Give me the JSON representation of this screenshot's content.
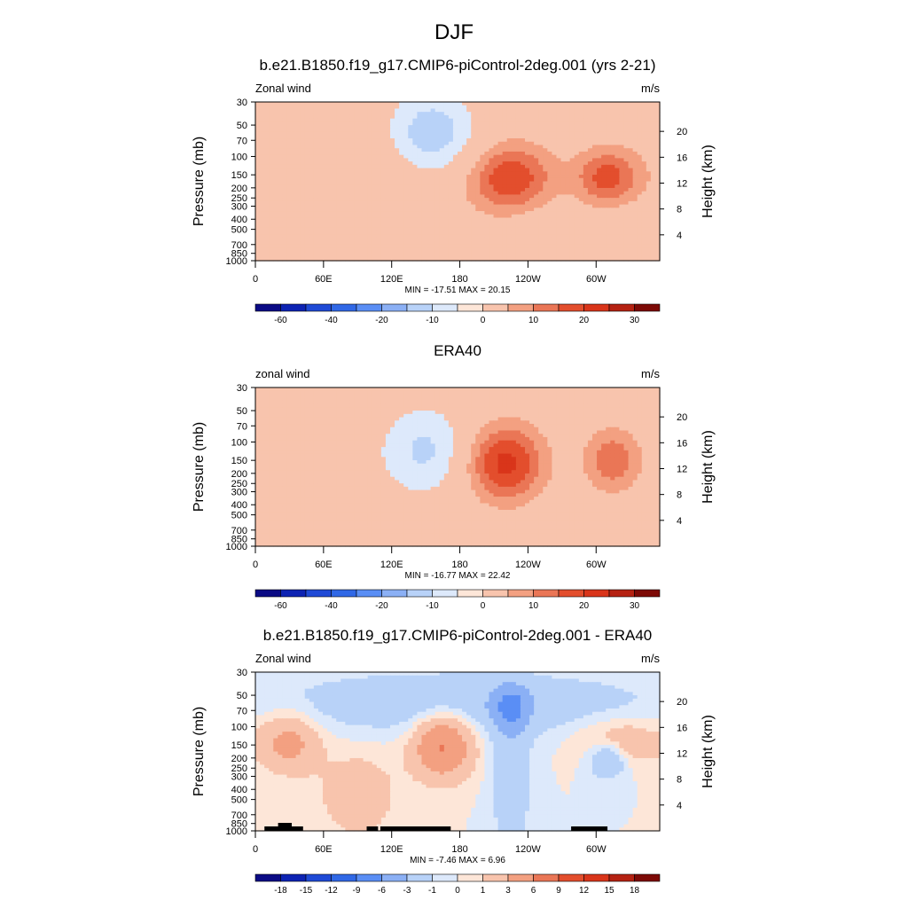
{
  "figure_title": "DJF",
  "chart_data": [
    {
      "type": "contour",
      "title": "b.e21.B1850.f19_g17.CMIP6-piControl-2deg.001 (yrs 2-21)",
      "left_label": "Zonal wind",
      "right_label": "m/s",
      "ylabel": "Pressure (mb)",
      "y2label": "Height (km)",
      "y_ticks": [
        "30",
        "50",
        "70",
        "100",
        "150",
        "200",
        "250",
        "300",
        "400",
        "500",
        "700",
        "850",
        "1000"
      ],
      "y2_ticks": [
        "20",
        "16",
        "12",
        "8",
        "4"
      ],
      "x_ticks": [
        "0",
        "60E",
        "120E",
        "180",
        "120W",
        "60W"
      ],
      "stats": "MIN = -17.51  MAX =  20.15",
      "colorbar_labels": [
        "-60",
        "-40",
        "-20",
        "-10",
        "0",
        "10",
        "20",
        "30"
      ],
      "features": [
        {
          "lon": 155,
          "p": 60,
          "sx": 28,
          "sp": 0.65,
          "amp": -14
        },
        {
          "lon": 225,
          "p": 165,
          "sx": 26,
          "sp": 0.55,
          "amp": 20
        },
        {
          "lon": 310,
          "p": 160,
          "sx": 20,
          "sp": 0.45,
          "amp": 17
        },
        {
          "lon": 60,
          "p": 150,
          "sx": 60,
          "sp": 0.8,
          "amp": 4
        },
        {
          "lon": 140,
          "p": 750,
          "sx": 45,
          "sp": 0.5,
          "amp": 4
        },
        {
          "lon": 240,
          "p": 600,
          "sx": 25,
          "sp": 0.7,
          "amp": -3
        },
        {
          "lon": 320,
          "p": 700,
          "sx": 30,
          "sp": 0.6,
          "amp": -3
        }
      ]
    },
    {
      "type": "contour",
      "title": "ERA40",
      "left_label": "zonal wind",
      "right_label": "m/s",
      "ylabel": "Pressure (mb)",
      "y2label": "Height (km)",
      "y_ticks": [
        "30",
        "50",
        "70",
        "100",
        "150",
        "200",
        "250",
        "300",
        "400",
        "500",
        "700",
        "850",
        "1000"
      ],
      "y2_ticks": [
        "20",
        "16",
        "12",
        "8",
        "4"
      ],
      "x_ticks": [
        "0",
        "60E",
        "120E",
        "180",
        "120W",
        "60W"
      ],
      "stats": "MIN = -16.77  MAX =  22.42",
      "colorbar_labels": [
        "-60",
        "-40",
        "-20",
        "-10",
        "0",
        "10",
        "20",
        "30"
      ],
      "features": [
        {
          "lon": 150,
          "p": 120,
          "sx": 28,
          "sp": 0.7,
          "amp": -11
        },
        {
          "lon": 220,
          "p": 160,
          "sx": 24,
          "sp": 0.6,
          "amp": 22
        },
        {
          "lon": 315,
          "p": 150,
          "sx": 18,
          "sp": 0.5,
          "amp": 14
        },
        {
          "lon": 60,
          "p": 300,
          "sx": 40,
          "sp": 0.9,
          "amp": -2
        },
        {
          "lon": 60,
          "p": 800,
          "sx": 40,
          "sp": 0.4,
          "amp": 3
        },
        {
          "lon": 300,
          "p": 850,
          "sx": 50,
          "sp": 0.4,
          "amp": -2
        }
      ]
    },
    {
      "type": "contour",
      "title": "b.e21.B1850.f19_g17.CMIP6-piControl-2deg.001 - ERA40",
      "left_label": "Zonal wind",
      "right_label": "m/s",
      "ylabel": "Pressure (mb)",
      "y2label": "Height (km)",
      "y_ticks": [
        "30",
        "50",
        "70",
        "100",
        "150",
        "200",
        "250",
        "300",
        "400",
        "500",
        "700",
        "850",
        "1000"
      ],
      "y2_ticks": [
        "20",
        "16",
        "12",
        "8",
        "4"
      ],
      "x_ticks": [
        "0",
        "60E",
        "120E",
        "180",
        "120W",
        "60W"
      ],
      "stats": "MIN = -7.46  MAX =  6.96",
      "colorbar_labels": [
        "-18",
        "-15",
        "-12",
        "-9",
        "-6",
        "-3",
        "-1",
        "0",
        "1",
        "3",
        "6",
        "9",
        "12",
        "15",
        "18"
      ],
      "features": [
        {
          "lon": 180,
          "p": 60,
          "sx": 120,
          "sp": 0.5,
          "amp": -2.5
        },
        {
          "lon": 225,
          "p": 65,
          "sx": 10,
          "sp": 0.3,
          "amp": -5
        },
        {
          "lon": 165,
          "p": 150,
          "sx": 18,
          "sp": 0.5,
          "amp": 6.5
        },
        {
          "lon": 30,
          "p": 140,
          "sx": 18,
          "sp": 0.45,
          "amp": 4
        },
        {
          "lon": 320,
          "p": 140,
          "sx": 25,
          "sp": 0.35,
          "amp": 3
        },
        {
          "lon": 90,
          "p": 450,
          "sx": 25,
          "sp": 0.7,
          "amp": 2
        },
        {
          "lon": 225,
          "p": 300,
          "sx": 12,
          "sp": 1.2,
          "amp": -2.5
        },
        {
          "lon": 310,
          "p": 200,
          "sx": 12,
          "sp": 0.3,
          "amp": -4
        }
      ],
      "land_blocks": [
        [
          8,
          42
        ],
        [
          98,
          108
        ],
        [
          110,
          172
        ],
        [
          278,
          310
        ]
      ]
    }
  ],
  "colors": {
    "palette": [
      "#0b0b85",
      "#0d23b3",
      "#1f4ad6",
      "#3068e6",
      "#5a8ef5",
      "#8bb0f5",
      "#b8d2f8",
      "#dde9fb",
      "#fde6d8",
      "#f8c4ad",
      "#f3a081",
      "#ea7656",
      "#e34e2d",
      "#d9351a",
      "#b52212",
      "#7d0a06"
    ]
  }
}
